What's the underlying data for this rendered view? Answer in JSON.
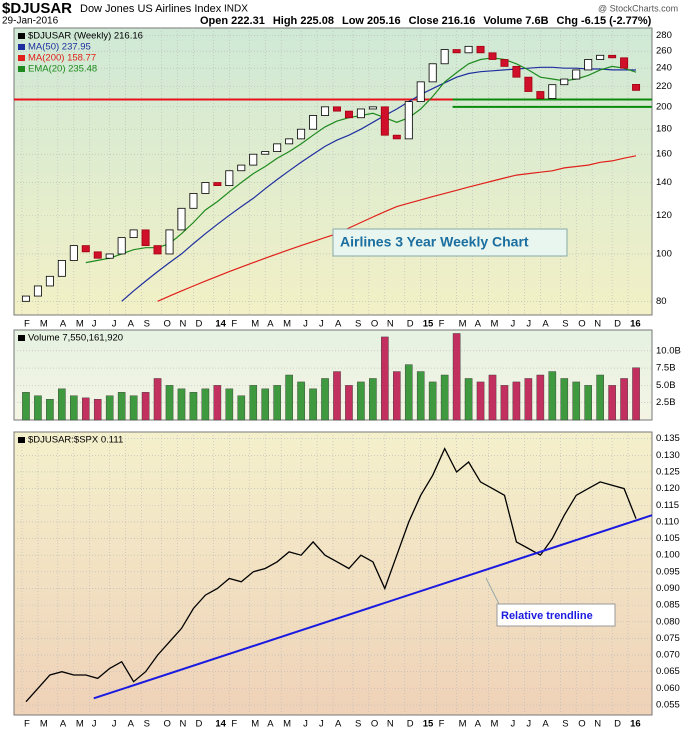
{
  "header": {
    "symbol": "$DJUSAR",
    "name": "Dow Jones US Airlines Index",
    "exchange": "INDX",
    "date": "29-Jan-2016",
    "quote": [
      "Open 222.31",
      "High 225.08",
      "Low 205.16",
      "Close 216.16",
      "Volume 7.6B",
      "Chg -6.15 (-2.77%)"
    ],
    "credit": "@ StockCharts.com"
  },
  "chart_data": [
    {
      "type": "candlestick",
      "legend": "$DJUSAR (Weekly) 216.16",
      "log": true,
      "grid": true,
      "annotation": "Airlines 3 Year Weekly Chart",
      "x": [
        1,
        4,
        7,
        10,
        13,
        16,
        19,
        22,
        25,
        28,
        31,
        34,
        37,
        40,
        43,
        46,
        49,
        52,
        55,
        58,
        61,
        64,
        67,
        70,
        73,
        76,
        79,
        82,
        85,
        88,
        91,
        94,
        97,
        100,
        103,
        106,
        109,
        112,
        115,
        118,
        121,
        124,
        127,
        130,
        133,
        136,
        139,
        142,
        145,
        148,
        151,
        154
      ],
      "open": [
        80,
        82,
        86,
        90,
        97,
        104,
        101,
        98,
        100,
        108,
        112,
        104,
        100,
        112,
        124,
        133,
        140,
        138,
        148,
        152,
        160,
        162,
        168,
        172,
        180,
        192,
        200,
        196,
        190,
        198,
        200,
        175,
        172,
        205,
        225,
        245,
        262,
        258,
        266,
        258,
        250,
        242,
        230,
        215,
        208,
        222,
        228,
        238,
        250,
        255,
        252,
        222.31
      ],
      "close": [
        82,
        86,
        90,
        97,
        104,
        101,
        98,
        100,
        108,
        112,
        104,
        100,
        112,
        124,
        133,
        140,
        138,
        148,
        152,
        160,
        162,
        168,
        172,
        180,
        192,
        200,
        196,
        190,
        198,
        200,
        175,
        172,
        205,
        225,
        245,
        262,
        258,
        266,
        258,
        250,
        242,
        230,
        215,
        208,
        222,
        228,
        238,
        250,
        255,
        252,
        240,
        216.16
      ],
      "series": [
        {
          "name": "MA(50)",
          "legend": "MA(50) 237.95",
          "color": "#1f2fa0",
          "values": [
            null,
            null,
            null,
            null,
            null,
            null,
            null,
            null,
            80,
            84,
            88,
            92,
            96,
            100,
            105,
            110,
            115,
            120,
            125,
            130,
            136,
            142,
            148,
            154,
            160,
            166,
            171,
            175,
            180,
            186,
            192,
            198,
            205,
            212,
            218,
            224,
            230,
            234,
            236,
            237,
            238,
            239,
            240,
            241,
            241,
            240,
            240,
            239,
            239,
            238,
            238,
            237.95
          ]
        },
        {
          "name": "MA(200)",
          "legend": "MA(200) 158.77",
          "color": "#e0201a",
          "values": [
            null,
            null,
            null,
            null,
            null,
            null,
            null,
            null,
            null,
            null,
            null,
            80,
            82,
            84,
            86,
            88,
            90,
            92,
            94,
            96,
            98,
            100,
            102,
            104,
            106,
            108,
            110,
            113,
            116,
            119,
            122,
            125,
            127,
            129,
            131,
            133,
            135,
            137,
            139,
            141,
            143,
            145,
            146,
            147,
            148,
            150,
            151,
            152,
            154,
            155,
            157,
            158.77
          ]
        },
        {
          "name": "EMA(20)",
          "legend": "EMA(20) 235.48",
          "color": "#1e8a1e",
          "values": [
            null,
            null,
            null,
            null,
            null,
            96,
            97,
            98,
            100,
            102,
            103,
            103,
            105,
            110,
            116,
            123,
            128,
            134,
            140,
            146,
            151,
            157,
            162,
            168,
            175,
            182,
            187,
            190,
            192,
            194,
            190,
            186,
            190,
            198,
            210,
            225,
            235,
            245,
            250,
            252,
            250,
            245,
            238,
            230,
            228,
            226,
            228,
            232,
            238,
            242,
            240,
            235.48
          ]
        }
      ],
      "hlines": [
        {
          "value": 207,
          "color": "#e8101a",
          "x": [
            -2,
            158
          ]
        },
        {
          "value": 207,
          "color": "#0a8a0a",
          "x": [
            108,
            158
          ]
        },
        {
          "value": 200,
          "color": "#0a8a0a",
          "x": [
            108,
            158
          ]
        }
      ],
      "xlim": [
        -2,
        158
      ],
      "ylim": [
        75,
        290
      ],
      "yticks": [
        80,
        100,
        120,
        140,
        160,
        180,
        200,
        220,
        240,
        260,
        280
      ],
      "xticks": [
        {
          "value": 0,
          "label": "F"
        },
        {
          "value": 4,
          "label": "M"
        },
        {
          "value": 9,
          "label": "A"
        },
        {
          "value": 13,
          "label": "M"
        },
        {
          "value": 17,
          "label": "J"
        },
        {
          "value": 22,
          "label": "J"
        },
        {
          "value": 26,
          "label": "A"
        },
        {
          "value": 30,
          "label": "S"
        },
        {
          "value": 35,
          "label": "O"
        },
        {
          "value": 39,
          "label": "N"
        },
        {
          "value": 43,
          "label": "D"
        },
        {
          "value": 48,
          "label": "14"
        },
        {
          "value": 52,
          "label": "F"
        },
        {
          "value": 57,
          "label": "M"
        },
        {
          "value": 61,
          "label": "A"
        },
        {
          "value": 65,
          "label": "M"
        },
        {
          "value": 70,
          "label": "J"
        },
        {
          "value": 74,
          "label": "J"
        },
        {
          "value": 78,
          "label": "A"
        },
        {
          "value": 83,
          "label": "S"
        },
        {
          "value": 87,
          "label": "O"
        },
        {
          "value": 91,
          "label": "N"
        },
        {
          "value": 96,
          "label": "D"
        },
        {
          "value": 100,
          "label": "15"
        },
        {
          "value": 104,
          "label": "F"
        },
        {
          "value": 109,
          "label": "M"
        },
        {
          "value": 113,
          "label": "A"
        },
        {
          "value": 117,
          "label": "M"
        },
        {
          "value": 122,
          "label": "J"
        },
        {
          "value": 126,
          "label": "J"
        },
        {
          "value": 130,
          "label": "A"
        },
        {
          "value": 135,
          "label": "S"
        },
        {
          "value": 139,
          "label": "O"
        },
        {
          "value": 143,
          "label": "N"
        },
        {
          "value": 148,
          "label": "D"
        },
        {
          "value": 152,
          "label": "16"
        }
      ]
    },
    {
      "type": "bar",
      "legend": "Volume 7,550,161,920",
      "grid": true,
      "colors": {
        "up": "#3f9a3f",
        "down": "#c23060"
      },
      "x": [
        1,
        4,
        7,
        10,
        13,
        16,
        19,
        22,
        25,
        28,
        31,
        34,
        37,
        40,
        43,
        46,
        49,
        52,
        55,
        58,
        61,
        64,
        67,
        70,
        73,
        76,
        79,
        82,
        85,
        88,
        91,
        94,
        97,
        100,
        103,
        106,
        109,
        112,
        115,
        118,
        121,
        124,
        127,
        130,
        133,
        136,
        139,
        142,
        145,
        148,
        151,
        154
      ],
      "values": [
        4000000000,
        3500000000,
        3000000000,
        4500000000,
        3500000000,
        3200000000,
        3000000000,
        3500000000,
        4000000000,
        3500000000,
        4000000000,
        6000000000,
        5000000000,
        4500000000,
        4000000000,
        4500000000,
        5000000000,
        4500000000,
        3500000000,
        5000000000,
        4500000000,
        5000000000,
        6500000000,
        5500000000,
        4500000000,
        6000000000,
        7000000000,
        5000000000,
        5500000000,
        6000000000,
        12000000000,
        7000000000,
        8000000000,
        7000000000,
        5500000000,
        6500000000,
        12500000000,
        6000000000,
        5500000000,
        6500000000,
        5000000000,
        5500000000,
        6000000000,
        6500000000,
        7000000000,
        6000000000,
        5500000000,
        5000000000,
        6500000000,
        5000000000,
        6000000000,
        7550161920
      ],
      "xlim": [
        -2,
        158
      ],
      "ylim": [
        0,
        13000000000
      ],
      "yticks": [
        {
          "value": 2500000000,
          "label": "2.5B"
        },
        {
          "value": 5000000000,
          "label": "5.0B"
        },
        {
          "value": 7500000000,
          "label": "7.5B"
        },
        {
          "value": 10000000000,
          "label": "10.0B"
        }
      ]
    },
    {
      "type": "line",
      "legend": "$DJUSAR:$SPX 0.111",
      "grid": true,
      "color": "#000000",
      "annotation": "Relative trendline",
      "x": [
        1,
        4,
        7,
        10,
        13,
        16,
        19,
        22,
        25,
        28,
        31,
        34,
        37,
        40,
        43,
        46,
        49,
        52,
        55,
        58,
        61,
        64,
        67,
        70,
        73,
        76,
        79,
        82,
        85,
        88,
        91,
        94,
        97,
        100,
        103,
        106,
        109,
        112,
        115,
        118,
        121,
        124,
        127,
        130,
        133,
        136,
        139,
        142,
        145,
        148,
        151,
        154
      ],
      "values": [
        0.056,
        0.06,
        0.064,
        0.065,
        0.064,
        0.064,
        0.063,
        0.066,
        0.068,
        0.062,
        0.065,
        0.07,
        0.074,
        0.078,
        0.084,
        0.088,
        0.09,
        0.093,
        0.092,
        0.095,
        0.096,
        0.098,
        0.101,
        0.1,
        0.104,
        0.1,
        0.098,
        0.096,
        0.1,
        0.098,
        0.09,
        0.1,
        0.11,
        0.118,
        0.124,
        0.132,
        0.125,
        0.128,
        0.122,
        0.12,
        0.118,
        0.104,
        0.102,
        0.1,
        0.105,
        0.112,
        0.118,
        0.12,
        0.122,
        0.121,
        0.12,
        0.111
      ],
      "trendline": {
        "x": [
          18,
          158
        ],
        "y": [
          0.057,
          0.112
        ],
        "color": "#1a1ae0"
      },
      "xlim": [
        -2,
        158
      ],
      "ylim": [
        0.052,
        0.137
      ],
      "yticks": [
        0.055,
        {
          "value": 0.06,
          "label": "0.060"
        },
        0.065,
        {
          "value": 0.07,
          "label": "0.070"
        },
        0.075,
        {
          "value": 0.08,
          "label": "0.080"
        },
        0.085,
        {
          "value": 0.09,
          "label": "0.090"
        },
        0.095,
        {
          "value": 0.1,
          "label": "0.100"
        },
        0.105,
        {
          "value": 0.11,
          "label": "0.110"
        },
        0.115,
        {
          "value": 0.12,
          "label": "0.120"
        },
        0.125,
        {
          "value": 0.13,
          "label": "0.130"
        },
        0.135
      ],
      "xticks": [
        {
          "value": 0,
          "label": "F"
        },
        {
          "value": 4,
          "label": "M"
        },
        {
          "value": 9,
          "label": "A"
        },
        {
          "value": 13,
          "label": "M"
        },
        {
          "value": 17,
          "label": "J"
        },
        {
          "value": 22,
          "label": "J"
        },
        {
          "value": 26,
          "label": "A"
        },
        {
          "value": 30,
          "label": "S"
        },
        {
          "value": 35,
          "label": "O"
        },
        {
          "value": 39,
          "label": "N"
        },
        {
          "value": 43,
          "label": "D"
        },
        {
          "value": 48,
          "label": "14"
        },
        {
          "value": 52,
          "label": "F"
        },
        {
          "value": 57,
          "label": "M"
        },
        {
          "value": 61,
          "label": "A"
        },
        {
          "value": 65,
          "label": "M"
        },
        {
          "value": 70,
          "label": "J"
        },
        {
          "value": 74,
          "label": "J"
        },
        {
          "value": 78,
          "label": "A"
        },
        {
          "value": 83,
          "label": "S"
        },
        {
          "value": 87,
          "label": "O"
        },
        {
          "value": 91,
          "label": "N"
        },
        {
          "value": 96,
          "label": "D"
        },
        {
          "value": 100,
          "label": "15"
        },
        {
          "value": 104,
          "label": "F"
        },
        {
          "value": 109,
          "label": "M"
        },
        {
          "value": 113,
          "label": "A"
        },
        {
          "value": 117,
          "label": "M"
        },
        {
          "value": 122,
          "label": "J"
        },
        {
          "value": 126,
          "label": "J"
        },
        {
          "value": 130,
          "label": "A"
        },
        {
          "value": 135,
          "label": "S"
        },
        {
          "value": 139,
          "label": "O"
        },
        {
          "value": 143,
          "label": "N"
        },
        {
          "value": 148,
          "label": "D"
        },
        {
          "value": 152,
          "label": "16"
        }
      ]
    }
  ]
}
